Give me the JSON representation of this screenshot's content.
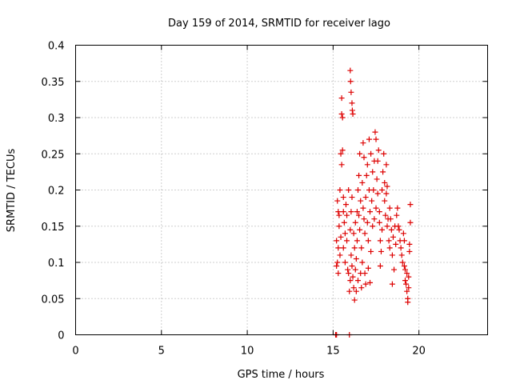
{
  "chart_data": {
    "type": "scatter",
    "title": "Day 159 of 2014, SRMTID for receiver lago",
    "xlabel": "GPS time / hours",
    "ylabel": "SRMTID / TECUs",
    "xlim": [
      0,
      24
    ],
    "ylim": [
      0,
      0.4
    ],
    "x_ticks": [
      0,
      5,
      10,
      15,
      20
    ],
    "x_tick_labels": [
      "0",
      "5",
      "10",
      "15",
      "20"
    ],
    "y_ticks": [
      0,
      0.05,
      0.1,
      0.15,
      0.2,
      0.25,
      0.3,
      0.35,
      0.4
    ],
    "y_tick_labels": [
      "0",
      "0.05",
      "0.1",
      "0.15",
      "0.2",
      "0.25",
      "0.3",
      "0.35",
      "0.4"
    ],
    "grid": true,
    "marker": "+",
    "marker_color": "#dd0000",
    "series": [
      {
        "name": "SRMTID",
        "color": "#dd0000",
        "points": [
          [
            15.15,
            0.0
          ],
          [
            15.2,
            0.0
          ],
          [
            15.95,
            0.0
          ],
          [
            15.2,
            0.13
          ],
          [
            15.25,
            0.1
          ],
          [
            15.3,
            0.17
          ],
          [
            15.25,
            0.185
          ],
          [
            15.3,
            0.12
          ],
          [
            15.2,
            0.095
          ],
          [
            15.35,
            0.15
          ],
          [
            15.3,
            0.085
          ],
          [
            15.4,
            0.2
          ],
          [
            15.35,
            0.165
          ],
          [
            15.45,
            0.135
          ],
          [
            15.4,
            0.11
          ],
          [
            15.45,
            0.25
          ],
          [
            15.5,
            0.235
          ],
          [
            15.5,
            0.305
          ],
          [
            15.55,
            0.3
          ],
          [
            15.5,
            0.327
          ],
          [
            15.55,
            0.255
          ],
          [
            15.6,
            0.19
          ],
          [
            15.6,
            0.17
          ],
          [
            15.65,
            0.155
          ],
          [
            15.7,
            0.14
          ],
          [
            15.6,
            0.12
          ],
          [
            15.7,
            0.1
          ],
          [
            15.75,
            0.18
          ],
          [
            15.8,
            0.165
          ],
          [
            15.8,
            0.13
          ],
          [
            15.85,
            0.09
          ],
          [
            15.9,
            0.085
          ],
          [
            15.9,
            0.2
          ],
          [
            15.95,
            0.06
          ],
          [
            16.0,
            0.075
          ],
          [
            16.0,
            0.145
          ],
          [
            16.05,
            0.17
          ],
          [
            16.05,
            0.11
          ],
          [
            16.1,
            0.19
          ],
          [
            16.1,
            0.095
          ],
          [
            16.15,
            0.08
          ],
          [
            16.2,
            0.14
          ],
          [
            16.2,
            0.065
          ],
          [
            16.25,
            0.048
          ],
          [
            16.25,
            0.12
          ],
          [
            16.3,
            0.155
          ],
          [
            16.3,
            0.09
          ],
          [
            16.35,
            0.105
          ],
          [
            16.4,
            0.17
          ],
          [
            16.4,
            0.13
          ],
          [
            16.45,
            0.2
          ],
          [
            16.45,
            0.075
          ],
          [
            16.5,
            0.22
          ],
          [
            16.5,
            0.165
          ],
          [
            16.55,
            0.25
          ],
          [
            16.55,
            0.145
          ],
          [
            16.6,
            0.085
          ],
          [
            16.6,
            0.185
          ],
          [
            16.65,
            0.065
          ],
          [
            16.65,
            0.12
          ],
          [
            16.7,
            0.1
          ],
          [
            16.7,
            0.21
          ],
          [
            16.75,
            0.175
          ],
          [
            16.75,
            0.265
          ],
          [
            16.8,
            0.245
          ],
          [
            16.8,
            0.16
          ],
          [
            16.85,
            0.14
          ],
          [
            16.85,
            0.085
          ],
          [
            16.9,
            0.07
          ],
          [
            16.9,
            0.19
          ],
          [
            16.95,
            0.22
          ],
          [
            17.0,
            0.235
          ],
          [
            17.0,
            0.155
          ],
          [
            17.05,
            0.13
          ],
          [
            17.1,
            0.27
          ],
          [
            17.1,
            0.2
          ],
          [
            17.15,
            0.17
          ],
          [
            17.2,
            0.25
          ],
          [
            17.2,
            0.115
          ],
          [
            17.25,
            0.185
          ],
          [
            17.3,
            0.225
          ],
          [
            17.3,
            0.15
          ],
          [
            17.35,
            0.2
          ],
          [
            17.4,
            0.16
          ],
          [
            17.4,
            0.24
          ],
          [
            17.45,
            0.28
          ],
          [
            17.5,
            0.27
          ],
          [
            17.5,
            0.175
          ],
          [
            17.55,
            0.215
          ],
          [
            17.6,
            0.195
          ],
          [
            17.6,
            0.24
          ],
          [
            17.65,
            0.255
          ],
          [
            17.7,
            0.17
          ],
          [
            17.7,
            0.155
          ],
          [
            17.75,
            0.13
          ],
          [
            17.75,
            0.095
          ],
          [
            17.8,
            0.115
          ],
          [
            17.85,
            0.145
          ],
          [
            17.85,
            0.2
          ],
          [
            17.9,
            0.225
          ],
          [
            17.95,
            0.25
          ],
          [
            18.0,
            0.21
          ],
          [
            18.0,
            0.185
          ],
          [
            18.05,
            0.165
          ],
          [
            18.1,
            0.195
          ],
          [
            18.1,
            0.235
          ],
          [
            18.15,
            0.15
          ],
          [
            18.2,
            0.16
          ],
          [
            18.25,
            0.13
          ],
          [
            18.3,
            0.175
          ],
          [
            18.3,
            0.12
          ],
          [
            18.35,
            0.16
          ],
          [
            18.4,
            0.145
          ],
          [
            18.45,
            0.11
          ],
          [
            18.5,
            0.135
          ],
          [
            18.55,
            0.09
          ],
          [
            18.6,
            0.15
          ],
          [
            18.65,
            0.125
          ],
          [
            18.7,
            0.165
          ],
          [
            18.75,
            0.175
          ],
          [
            18.8,
            0.15
          ],
          [
            18.85,
            0.145
          ],
          [
            18.9,
            0.13
          ],
          [
            18.95,
            0.12
          ],
          [
            19.0,
            0.11
          ],
          [
            19.05,
            0.1
          ],
          [
            19.1,
            0.14
          ],
          [
            19.15,
            0.13
          ],
          [
            19.15,
            0.095
          ],
          [
            19.2,
            0.09
          ],
          [
            19.2,
            0.075
          ],
          [
            19.25,
            0.07
          ],
          [
            19.3,
            0.085
          ],
          [
            19.3,
            0.06
          ],
          [
            19.35,
            0.05
          ],
          [
            19.35,
            0.045
          ],
          [
            19.4,
            0.065
          ],
          [
            19.4,
            0.08
          ],
          [
            19.45,
            0.115
          ],
          [
            19.45,
            0.125
          ],
          [
            19.5,
            0.155
          ],
          [
            19.5,
            0.18
          ],
          [
            17.05,
            0.092
          ],
          [
            17.15,
            0.072
          ],
          [
            16.35,
            0.06
          ],
          [
            18.45,
            0.07
          ],
          [
            18.15,
            0.205
          ],
          [
            16.0,
            0.365
          ],
          [
            16.02,
            0.35
          ],
          [
            16.05,
            0.335
          ],
          [
            16.1,
            0.32
          ],
          [
            16.12,
            0.31
          ],
          [
            16.15,
            0.305
          ]
        ]
      }
    ]
  }
}
